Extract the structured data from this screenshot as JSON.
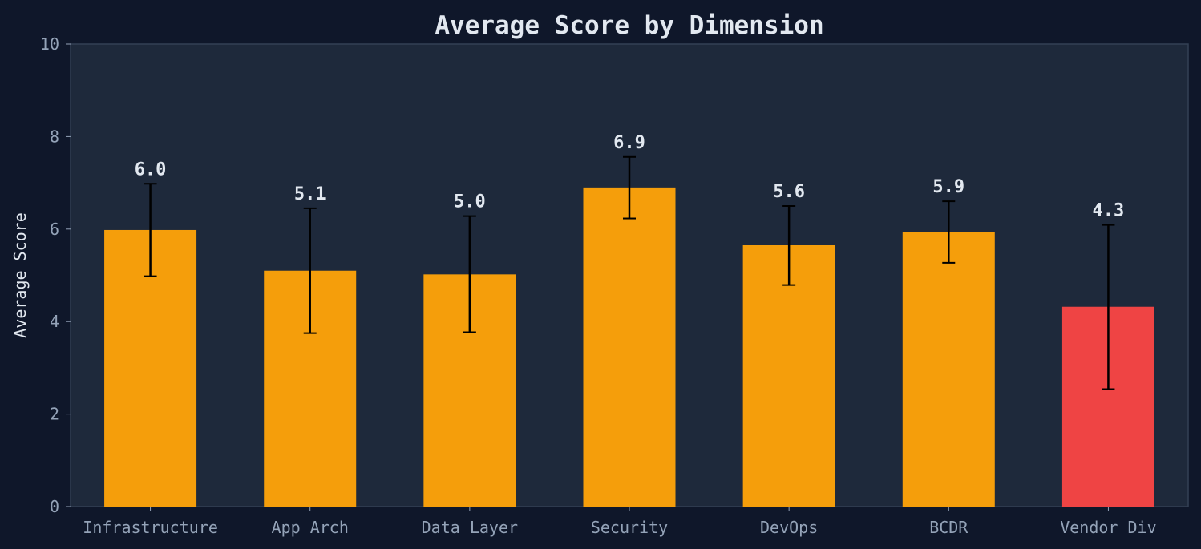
{
  "chart_data": {
    "type": "bar",
    "title": "Average Score by Dimension",
    "xlabel": "",
    "ylabel": "Average Score",
    "ylim": [
      0,
      10
    ],
    "yticks": [
      0,
      2,
      4,
      6,
      8,
      10
    ],
    "grid": false,
    "categories": [
      "Infrastructure",
      "App Arch",
      "Data Layer",
      "Security",
      "DevOps",
      "BCDR",
      "Vendor Div"
    ],
    "values": [
      5.98,
      5.1,
      5.02,
      6.9,
      5.65,
      5.93,
      4.32
    ],
    "data_labels": [
      "6.0",
      "5.1",
      "5.0",
      "6.9",
      "5.6",
      "5.9",
      "4.3"
    ],
    "error_low": [
      4.98,
      3.75,
      3.77,
      6.23,
      4.79,
      5.27,
      2.54
    ],
    "error_high": [
      6.98,
      6.45,
      6.28,
      7.56,
      6.5,
      6.6,
      6.09
    ],
    "bar_colors": [
      "#f59e0b",
      "#f59e0b",
      "#f59e0b",
      "#f59e0b",
      "#f59e0b",
      "#f59e0b",
      "#ef4444"
    ]
  },
  "colors": {
    "page_background": "#0f172a",
    "plot_background": "#1e293b",
    "axis": "#334155",
    "tick_text": "#94a3b8",
    "label_text": "#e2e8f0",
    "error_bar": "#000000"
  }
}
